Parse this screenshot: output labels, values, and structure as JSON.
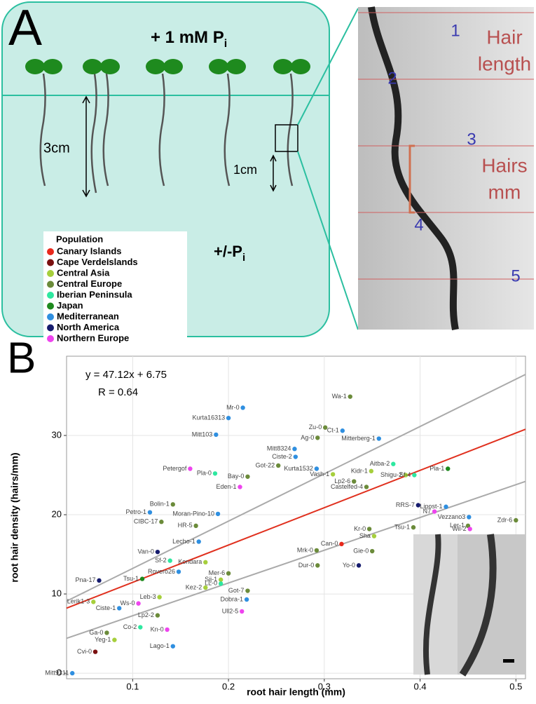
{
  "panel_a": {
    "letter": "A",
    "top_label": "+ 1 mM P",
    "top_sub": "i",
    "arrow_long": "3cm",
    "arrow_short": "1cm",
    "bottom_label": "+/-P",
    "bottom_sub": "i",
    "legend_title": "Population",
    "photo": {
      "numbers": [
        "1",
        "2",
        "3",
        "4",
        "5"
      ],
      "hair_length": [
        "Hair",
        "length"
      ],
      "hairs_mm": [
        "Hairs",
        "mm"
      ]
    }
  },
  "chart_data": {
    "type": "scatter",
    "letter": "B",
    "annotations": [
      "y = 47.12x + 6.75",
      "R = 0.64"
    ],
    "fit": {
      "slope": 47.12,
      "intercept": 6.75
    },
    "bands": [
      {
        "x": [
          0.031,
          0.51
        ],
        "values": [
          9.1,
          37.7
        ]
      },
      {
        "x": [
          0.031,
          0.51
        ],
        "values": [
          4.4,
          24.2
        ]
      }
    ],
    "x_label": "root hair length (mm)",
    "y_label": "root hair density (hairs/mm)",
    "xlim": [
      0.031,
      0.51
    ],
    "ylim": [
      -0.7,
      40
    ],
    "xticks": [
      {
        "value": 0.1,
        "label": "0.1"
      },
      {
        "value": 0.2,
        "label": "0.2"
      },
      {
        "value": 0.3,
        "label": "0.3"
      },
      {
        "value": 0.4,
        "label": "0.4"
      },
      {
        "value": 0.5,
        "label": "0.5"
      }
    ],
    "yticks": [
      0,
      10,
      20,
      30
    ],
    "grid": true,
    "series": [
      {
        "name": "Canary Islands",
        "color": "#e8291c",
        "x": [
          0.318
        ],
        "values": [
          16.3
        ],
        "labels": [
          "Can-0"
        ]
      },
      {
        "name": "Cape Verdelslands",
        "color": "#7a1010",
        "x": [
          0.061
        ],
        "values": [
          2.7
        ],
        "labels": [
          "Cvi-0"
        ]
      },
      {
        "name": "Central Asia",
        "color": "#a6cf3c",
        "x": [
          0.349,
          0.309,
          0.385,
          0.352,
          0.176,
          0.192,
          0.176,
          0.128,
          0.059,
          0.081
        ],
        "values": [
          25.5,
          25.1,
          25.0,
          17.3,
          14.0,
          11.8,
          10.8,
          9.6,
          9.0,
          4.2
        ],
        "labels": [
          "Kidr-1",
          "Vash-1",
          "Shigu-2",
          "Sha",
          "Kondara",
          "Sij-1",
          "Kez-2",
          "Leb-3",
          "Lerik1-3",
          "Yeg-1"
        ]
      },
      {
        "name": "Central Europe",
        "color": "#6b8b3a",
        "x": [
          0.327,
          0.301,
          0.293,
          0.252,
          0.22,
          0.331,
          0.344,
          0.142,
          0.5,
          0.13,
          0.166,
          0.45,
          0.393,
          0.347,
          0.292,
          0.35,
          0.293,
          0.2,
          0.22,
          0.126,
          0.073
        ],
        "values": [
          34.9,
          31.0,
          29.7,
          26.2,
          24.8,
          24.2,
          23.5,
          21.3,
          19.3,
          19.1,
          18.6,
          18.6,
          18.4,
          18.2,
          15.5,
          15.4,
          13.6,
          12.6,
          10.4,
          7.3,
          5.1
        ],
        "labels": [
          "Wa-1",
          "Zu-0",
          "Ag-0",
          "Got-22",
          "Bay-0",
          "Lp2-6",
          "Castelfed-4",
          "Bolin-1",
          "Zdr-6",
          "CIBC-17",
          "HR-5",
          "Ler-1",
          "Tsu-1",
          "Kr-0",
          "Mrk-0",
          "Gie-0",
          "Dur-0",
          "Mer-6",
          "Got-7",
          "Lp2-2",
          "Ga-0"
        ]
      },
      {
        "name": "Iberian Peninsula",
        "color": "#2ee8a0",
        "x": [
          0.372,
          0.186,
          0.394,
          0.139,
          0.192,
          0.108
        ],
        "values": [
          26.4,
          25.2,
          25.0,
          14.2,
          11.3,
          5.8
        ],
        "labels": [
          "Aitba-2",
          "Pla-0",
          "Sf-4",
          "Sf-2",
          "LL-0",
          "Co-2"
        ]
      },
      {
        "name": "Japan",
        "color": "#1e8a1e",
        "x": [
          0.429,
          0.11
        ],
        "values": [
          25.8,
          11.9
        ],
        "labels": [
          "Pla-1",
          "Tsu-1"
        ]
      },
      {
        "name": "Mediterranean",
        "color": "#2f8fe0",
        "x": [
          0.215,
          0.2,
          0.319,
          0.187,
          0.357,
          0.269,
          0.27,
          0.292,
          0.451,
          0.118,
          0.189,
          0.427,
          0.169,
          0.148,
          0.086,
          0.219,
          0.142,
          0.037
        ],
        "values": [
          33.5,
          32.2,
          30.6,
          30.1,
          29.6,
          28.3,
          27.3,
          25.8,
          19.7,
          20.3,
          20.1,
          21.0,
          16.6,
          12.8,
          8.2,
          9.3,
          3.4,
          0.0
        ],
        "labels": [
          "Mr-0",
          "Kurta16313",
          "Ct-1",
          "Mitt103",
          "Mitterberg-1",
          "Mitt8324",
          "Ciste-2",
          "Kurta1532",
          "Vezzano3",
          "Petro-1",
          "Moran-Pino-10",
          "Lipost-1",
          "Lecho-1",
          "Rovero26",
          "Ciste-1",
          "Dobra-1",
          "Lago-1",
          "Mitt9311"
        ]
      },
      {
        "name": "North America",
        "color": "#161c6e",
        "x": [
          0.398,
          0.126,
          0.336,
          0.065
        ],
        "values": [
          21.2,
          15.3,
          13.6,
          11.7
        ],
        "labels": [
          "RRS-7",
          "Van-0",
          "Yo-0",
          "Pna-17"
        ]
      },
      {
        "name": "Northern Europe",
        "color": "#ee44ee",
        "x": [
          0.16,
          0.212,
          0.415,
          0.452,
          0.106,
          0.214,
          0.136
        ],
        "values": [
          25.8,
          23.5,
          20.4,
          18.2,
          8.8,
          7.8,
          5.5
        ],
        "labels": [
          "Petergof",
          "Eden-1",
          "N7",
          "Wil-2",
          "Ws-0",
          "Ull2-5",
          "Kn-0"
        ]
      }
    ]
  }
}
